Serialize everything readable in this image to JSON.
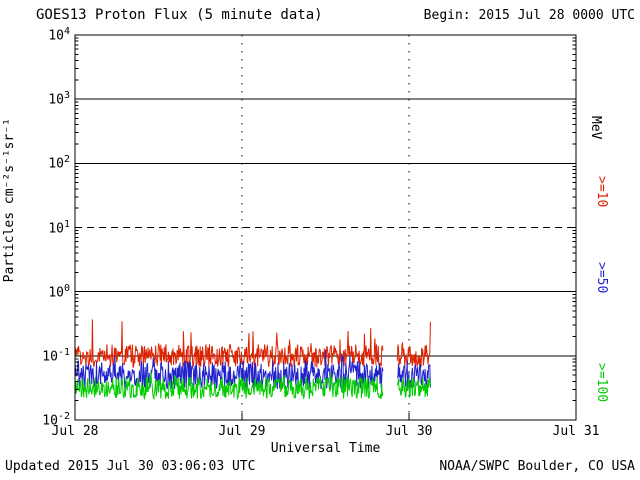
{
  "chart_data": {
    "type": "line",
    "title": "GOES13 Proton Flux (5 minute data)",
    "begin_label": "Begin: 2015 Jul 28 0000 UTC",
    "updated_label": "Updated 2015 Jul 30 03:06:03 UTC",
    "credit_label": "NOAA/SWPC Boulder, CO USA",
    "xlabel": "Universal Time",
    "ylabel": "Particles cm⁻²s⁻¹sr⁻¹",
    "right_unit": "MeV",
    "x_ticks": [
      "Jul 28",
      "Jul 29",
      "Jul 30",
      "Jul 31"
    ],
    "x_range_days": [
      0,
      3
    ],
    "y_log_range": [
      -2,
      4
    ],
    "y_tick_exponents": [
      4,
      3,
      2,
      1,
      0,
      -1,
      -2
    ],
    "solid_hlines_log": [
      3,
      2,
      0,
      -1
    ],
    "dashed_hlines_log": [
      1
    ],
    "vertical_dotted_days": [
      1,
      2
    ],
    "axis_color": "#000000",
    "background": "#ffffff",
    "grid_on": true,
    "legend_position": "right-edge-rotated",
    "data_gap_days": [
      1.845,
      1.93
    ],
    "data_end_day": 2.128,
    "sample_interval_minutes": 5,
    "noise_seed": 20150730,
    "series": [
      {
        "label": ">=10",
        "color": "#dd2200",
        "base_log": -1.0,
        "noise_amp_log": 0.18,
        "spike_amp_log": 0.45,
        "spike_prob": 0.04,
        "typical_flux_range": [
          0.06,
          0.3
        ]
      },
      {
        "label": ">=50",
        "color": "#2222cc",
        "base_log": -1.3,
        "noise_amp_log": 0.22,
        "spike_amp_log": 0.2,
        "spike_prob": 0.03,
        "typical_flux_range": [
          0.03,
          0.09
        ]
      },
      {
        "label": ">=100",
        "color": "#00cc00",
        "base_log": -1.5,
        "noise_amp_log": 0.17,
        "spike_amp_log": 0.15,
        "spike_prob": 0.03,
        "typical_flux_range": [
          0.02,
          0.05
        ]
      }
    ]
  }
}
